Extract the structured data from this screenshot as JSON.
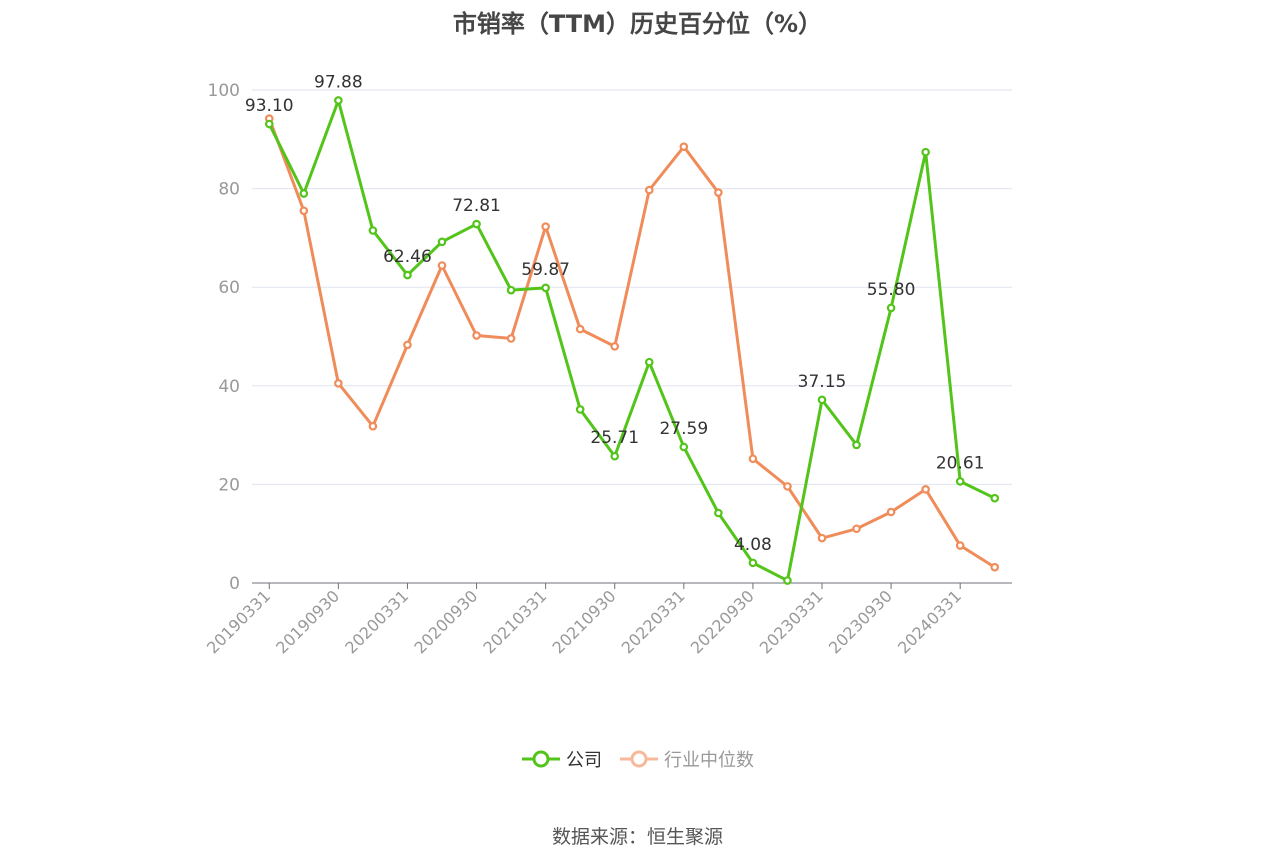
{
  "chart_data": {
    "type": "line",
    "title": "市销率（TTM）历史百分位（%）",
    "xlabel": "",
    "ylabel": "",
    "ylim": [
      0,
      100
    ],
    "yticks": [
      0,
      20,
      40,
      60,
      80,
      100
    ],
    "x": [
      "20190331",
      "20190630",
      "20190930",
      "20191231",
      "20200331",
      "20200630",
      "20200930",
      "20201231",
      "20210331",
      "20210630",
      "20210930",
      "20211231",
      "20220331",
      "20220630",
      "20220930",
      "20221231",
      "20230331",
      "20230630",
      "20230930",
      "20231231",
      "20240331",
      "20240630"
    ],
    "xtick_labels": [
      "20190331",
      "20190930",
      "20200331",
      "20200930",
      "20210331",
      "20210930",
      "20220331",
      "20220930",
      "20230331",
      "20230930",
      "20240331"
    ],
    "series": [
      {
        "name": "公司",
        "color": "#52c41a",
        "values": [
          93.1,
          79.0,
          97.88,
          71.5,
          62.46,
          69.2,
          72.81,
          59.4,
          59.87,
          35.2,
          25.71,
          44.8,
          27.59,
          14.2,
          4.08,
          0.5,
          37.15,
          28.0,
          55.8,
          87.4,
          20.61,
          17.2
        ],
        "data_labels": [
          {
            "index": 0,
            "text": "93.10"
          },
          {
            "index": 2,
            "text": "97.88"
          },
          {
            "index": 4,
            "text": "62.46"
          },
          {
            "index": 6,
            "text": "72.81"
          },
          {
            "index": 8,
            "text": "59.87"
          },
          {
            "index": 10,
            "text": "25.71"
          },
          {
            "index": 12,
            "text": "27.59"
          },
          {
            "index": 14,
            "text": "4.08"
          },
          {
            "index": 16,
            "text": "37.15"
          },
          {
            "index": 18,
            "text": "55.80"
          },
          {
            "index": 20,
            "text": "20.61"
          }
        ]
      },
      {
        "name": "行业中位数",
        "color": "#f08c5a",
        "values": [
          94.2,
          75.5,
          40.5,
          31.8,
          48.3,
          64.4,
          50.2,
          49.6,
          72.3,
          51.5,
          48.0,
          79.7,
          88.5,
          79.2,
          25.2,
          19.6,
          9.1,
          11.0,
          14.4,
          19.0,
          7.6,
          3.2
        ],
        "data_labels": []
      }
    ],
    "grid": true,
    "legend": "bottom-center"
  },
  "legend": {
    "items": [
      {
        "label": "公司",
        "color": "#52c41a",
        "text_color": "#333333"
      },
      {
        "label": "行业中位数",
        "color": "#f8b89a",
        "text_color": "#999999"
      }
    ]
  },
  "source": "数据来源：恒生聚源"
}
